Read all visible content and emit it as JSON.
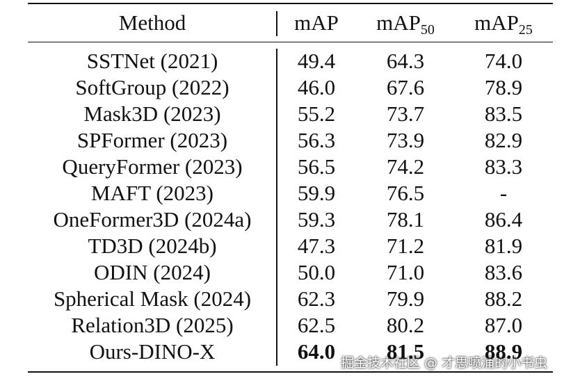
{
  "table": {
    "header": [
      {
        "text": "Method"
      },
      {
        "text": "mAP"
      },
      {
        "text": "mAP",
        "sub": "50"
      },
      {
        "text": "mAP",
        "sub": "25"
      }
    ],
    "rows": [
      [
        "SSTNet (2021)",
        "49.4",
        "64.3",
        "74.0"
      ],
      [
        "SoftGroup (2022)",
        "46.0",
        "67.6",
        "78.9"
      ],
      [
        "Mask3D (2023)",
        "55.2",
        "73.7",
        "83.5"
      ],
      [
        "SPFormer (2023)",
        "56.3",
        "73.9",
        "82.9"
      ],
      [
        "QueryFormer (2023)",
        "56.5",
        "74.2",
        "83.3"
      ],
      [
        "MAFT (2023)",
        "59.9",
        "76.5",
        "-"
      ],
      [
        "OneFormer3D (2024a)",
        "59.3",
        "78.1",
        "86.4"
      ],
      [
        "TD3D (2024b)",
        "47.3",
        "71.2",
        "81.9"
      ],
      [
        "ODIN (2024)",
        "50.0",
        "71.0",
        "83.6"
      ],
      [
        "Spherical Mask (2024)",
        "62.3",
        "79.9",
        "88.2"
      ],
      [
        "Relation3D (2025)",
        "62.5",
        "80.2",
        "87.0"
      ],
      [
        "Ours-DINO-X",
        "64.0",
        "81.5",
        "88.9"
      ]
    ]
  },
  "watermark": "掘金技术社区 @ 才思喷涌的小书虫"
}
